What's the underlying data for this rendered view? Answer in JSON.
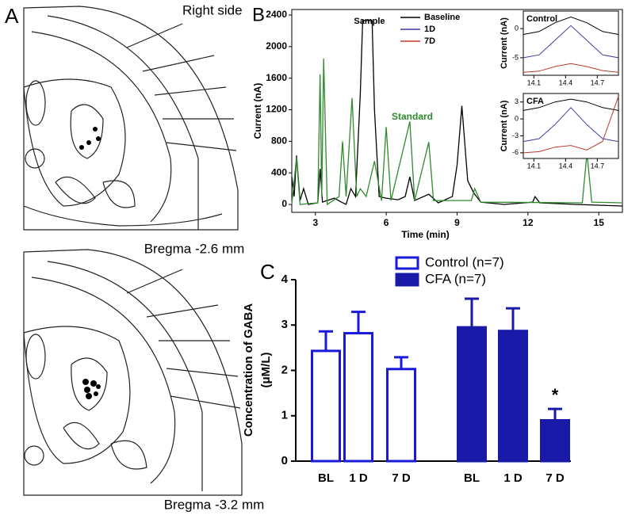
{
  "panel_a": {
    "letter": "A",
    "top_label": "Right side",
    "captions": [
      "Bregma -2.6 mm",
      "Bregma -3.2 mm"
    ]
  },
  "chart_data": [
    {
      "type": "line",
      "panel": "B",
      "xlabel": "Time (min)",
      "ylabel": "Current (nA)",
      "xlim": [
        2,
        16
      ],
      "ylim": [
        -100,
        2470
      ],
      "xticks": [
        3,
        6,
        9,
        12,
        15
      ],
      "yticks": [
        0,
        400,
        800,
        1200,
        1600,
        2000,
        2400
      ],
      "annotations": [
        {
          "text": "Sample",
          "color": "#000000"
        },
        {
          "text": "Standard",
          "color": "#2e8b2e"
        }
      ],
      "legend": [
        {
          "label": "Baseline",
          "color": "#000000"
        },
        {
          "label": "1D",
          "color": "#3b3b9e"
        },
        {
          "label": "7D",
          "color": "#c0392b"
        }
      ],
      "series": [
        {
          "color": "#000000",
          "x": [
            2,
            2.1,
            2.2,
            2.35,
            2.5,
            2.7,
            3.1,
            3.2,
            3.3,
            3.8,
            4.1,
            4.3,
            4.5,
            4.7,
            4.9,
            5.0,
            5.4,
            5.5,
            5.7,
            6,
            6.5,
            6.8,
            7,
            7.2,
            7.8,
            8.2,
            8.8,
            9.0,
            9.2,
            9.45,
            9.7,
            10,
            11,
            12.2,
            12.3,
            12.5,
            14,
            16
          ],
          "values": [
            350,
            100,
            620,
            50,
            200,
            0,
            20,
            450,
            30,
            80,
            30,
            0,
            200,
            100,
            1400,
            2330,
            2330,
            1200,
            100,
            80,
            60,
            100,
            350,
            50,
            130,
            20,
            100,
            500,
            1250,
            300,
            150,
            30,
            0,
            30,
            100,
            20,
            0,
            -20
          ]
        },
        {
          "color": "#2e8b2e",
          "x": [
            2,
            2.2,
            2.35,
            3.1,
            3.2,
            3.27,
            3.35,
            3.5,
            4.0,
            4.15,
            4.3,
            4.55,
            4.75,
            4.9,
            5.15,
            5.5,
            5.8,
            6.0,
            6.2,
            7.0,
            7.2,
            7.8,
            8.0,
            9.6,
            9.75,
            10,
            14.3,
            14.5,
            14.7,
            16
          ],
          "values": [
            0,
            600,
            0,
            20,
            1650,
            100,
            1850,
            0,
            100,
            800,
            100,
            1350,
            100,
            200,
            100,
            550,
            50,
            980,
            50,
            1050,
            50,
            790,
            50,
            50,
            200,
            30,
            20,
            650,
            30,
            20
          ]
        }
      ]
    },
    {
      "type": "line",
      "title": "Control",
      "ylabel": "Current (nA)",
      "xlim": [
        14.0,
        14.9
      ],
      "ylim": [
        -8,
        3
      ],
      "xticks": [
        14.1,
        14.4,
        14.7
      ],
      "yticks": [
        -5,
        0
      ],
      "series": [
        {
          "color": "#000000",
          "x": [
            14.0,
            14.15,
            14.3,
            14.45,
            14.6,
            14.75,
            14.9
          ],
          "values": [
            -1,
            -0.5,
            1,
            2,
            1,
            -0.5,
            -1
          ]
        },
        {
          "color": "#3b3b9e",
          "x": [
            14.0,
            14.15,
            14.3,
            14.45,
            14.6,
            14.75,
            14.9
          ],
          "values": [
            -5,
            -4.5,
            -2,
            0.5,
            -2,
            -4.5,
            -5
          ]
        },
        {
          "color": "#c0392b",
          "x": [
            14.0,
            14.15,
            14.3,
            14.45,
            14.6,
            14.75,
            14.9
          ],
          "values": [
            -7.5,
            -7.3,
            -6.5,
            -6,
            -6.5,
            -7.2,
            -7.5
          ]
        }
      ]
    },
    {
      "type": "line",
      "title": "CFA",
      "ylabel": "Current (nA)",
      "xlim": [
        14.0,
        14.9
      ],
      "ylim": [
        -7,
        4.5
      ],
      "xticks": [
        14.1,
        14.4,
        14.7
      ],
      "yticks": [
        -6,
        -3,
        0,
        3
      ],
      "series": [
        {
          "color": "#000000",
          "x": [
            14.0,
            14.15,
            14.3,
            14.45,
            14.6,
            14.75,
            14.9
          ],
          "values": [
            1.5,
            2,
            3,
            3.5,
            3,
            2,
            1.5
          ]
        },
        {
          "color": "#3b3b9e",
          "x": [
            14.0,
            14.15,
            14.3,
            14.45,
            14.6,
            14.75,
            14.9
          ],
          "values": [
            -4,
            -3.5,
            -1,
            2,
            -1,
            -3.5,
            -4
          ]
        },
        {
          "color": "#c0392b",
          "x": [
            14.0,
            14.15,
            14.3,
            14.45,
            14.6,
            14.75,
            14.9
          ],
          "values": [
            -6,
            -5.8,
            -5,
            -4.7,
            -5.5,
            -4,
            4
          ]
        }
      ]
    },
    {
      "type": "bar",
      "panel": "C",
      "ylabel": [
        "Concentration of GABA",
        "(μM/L)"
      ],
      "categories": [
        "BL",
        "1 D",
        "7 D"
      ],
      "ylim": [
        0,
        4
      ],
      "yticks": [
        0,
        1,
        2,
        3,
        4
      ],
      "series": [
        {
          "name": "Control (n=7)",
          "color": "#1a1adb",
          "filled": false,
          "values": [
            2.43,
            2.82,
            2.03
          ],
          "errors": [
            0.43,
            0.47,
            0.26
          ]
        },
        {
          "name": "CFA (n=7)",
          "color": "#1a1aa8",
          "filled": true,
          "values": [
            2.95,
            2.87,
            0.9
          ],
          "errors": [
            0.63,
            0.5,
            0.25
          ]
        }
      ],
      "annotations": [
        {
          "text": "*",
          "series": 1,
          "index": 2
        }
      ]
    }
  ]
}
